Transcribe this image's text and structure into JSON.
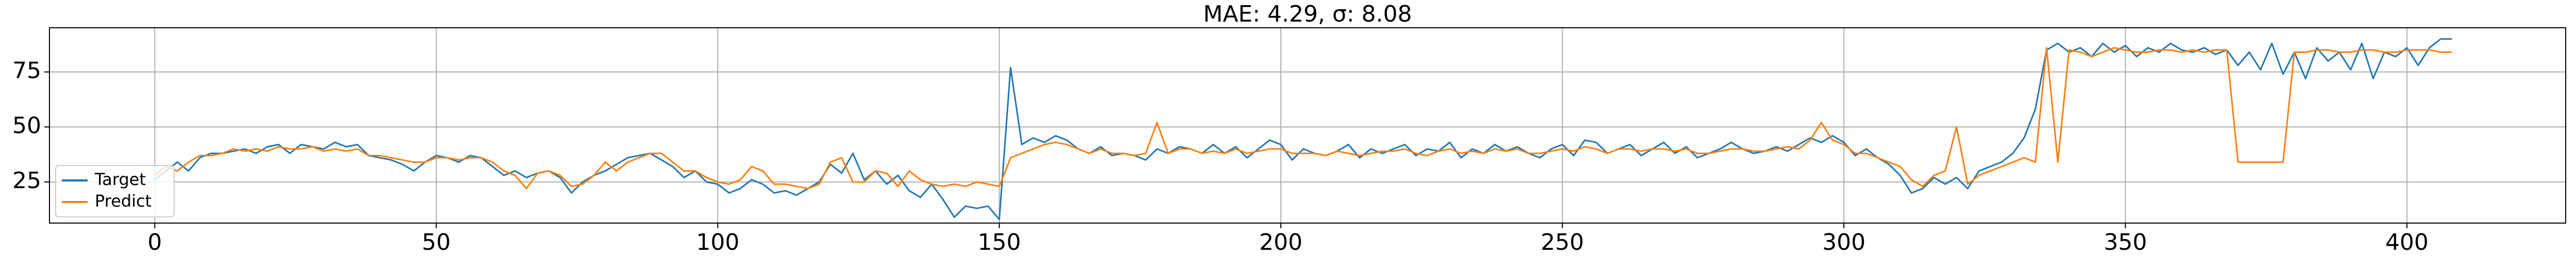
{
  "chart_data": {
    "type": "line",
    "title": "MAE: 4.29, σ: 8.08",
    "x": [
      0,
      2,
      4,
      6,
      8,
      10,
      12,
      14,
      16,
      18,
      20,
      22,
      24,
      26,
      28,
      30,
      32,
      34,
      36,
      38,
      40,
      42,
      44,
      46,
      48,
      50,
      52,
      54,
      56,
      58,
      60,
      62,
      64,
      66,
      68,
      70,
      72,
      74,
      76,
      78,
      80,
      82,
      84,
      86,
      88,
      90,
      92,
      94,
      96,
      98,
      100,
      102,
      104,
      106,
      108,
      110,
      112,
      114,
      116,
      118,
      120,
      122,
      124,
      126,
      128,
      130,
      132,
      134,
      136,
      138,
      140,
      142,
      144,
      146,
      148,
      150,
      152,
      154,
      156,
      158,
      160,
      162,
      164,
      166,
      168,
      170,
      172,
      174,
      176,
      178,
      180,
      182,
      184,
      186,
      188,
      190,
      192,
      194,
      196,
      198,
      200,
      202,
      204,
      206,
      208,
      210,
      212,
      214,
      216,
      218,
      220,
      222,
      224,
      226,
      228,
      230,
      232,
      234,
      236,
      238,
      240,
      242,
      244,
      246,
      248,
      250,
      252,
      254,
      256,
      258,
      260,
      262,
      264,
      266,
      268,
      270,
      272,
      274,
      276,
      278,
      280,
      282,
      284,
      286,
      288,
      290,
      292,
      294,
      296,
      298,
      300,
      302,
      304,
      306,
      308,
      310,
      312,
      314,
      316,
      318,
      320,
      322,
      324,
      326,
      328,
      330,
      332,
      334,
      336,
      338,
      340,
      342,
      344,
      346,
      348,
      350,
      352,
      354,
      356,
      358,
      360,
      362,
      364,
      366,
      368,
      370,
      372,
      374,
      376,
      378,
      380,
      382,
      384,
      386,
      388,
      390,
      392,
      394,
      396,
      398,
      400,
      402,
      404,
      406,
      408
    ],
    "series": [
      {
        "name": "Target",
        "color": "#1f77b4",
        "values": [
          26,
          30,
          34,
          30,
          36,
          38,
          38,
          39,
          40,
          38,
          41,
          42,
          38,
          42,
          41,
          40,
          43,
          41,
          42,
          37,
          36,
          35,
          33,
          30,
          34,
          37,
          36,
          34,
          37,
          36,
          32,
          28,
          30,
          27,
          29,
          30,
          27,
          20,
          25,
          28,
          30,
          33,
          36,
          37,
          38,
          35,
          32,
          27,
          30,
          25,
          24,
          20,
          22,
          26,
          24,
          20,
          21,
          19,
          22,
          25,
          33,
          29,
          38,
          26,
          30,
          24,
          28,
          21,
          18,
          24,
          17,
          9,
          14,
          13,
          14,
          8,
          77,
          42,
          45,
          43,
          46,
          44,
          40,
          38,
          41,
          37,
          38,
          37,
          35,
          40,
          38,
          41,
          40,
          38,
          42,
          38,
          41,
          36,
          40,
          44,
          42,
          35,
          40,
          38,
          37,
          39,
          42,
          36,
          40,
          38,
          40,
          42,
          37,
          40,
          39,
          43,
          36,
          40,
          38,
          42,
          39,
          41,
          38,
          36,
          40,
          42,
          37,
          44,
          43,
          38,
          40,
          42,
          37,
          40,
          43,
          38,
          41,
          36,
          38,
          40,
          43,
          40,
          38,
          39,
          41,
          39,
          42,
          45,
          43,
          46,
          43,
          37,
          40,
          36,
          33,
          28,
          20,
          22,
          27,
          24,
          27,
          22,
          30,
          32,
          34,
          38,
          45,
          58,
          85,
          88,
          84,
          86,
          82,
          88,
          84,
          87,
          82,
          86,
          84,
          88,
          85,
          84,
          86,
          83,
          85,
          78,
          84,
          76,
          88,
          74,
          84,
          72,
          86,
          80,
          84,
          76,
          88,
          72,
          84,
          82,
          86,
          78,
          86,
          90,
          90
        ]
      },
      {
        "name": "Predict",
        "color": "#ff7f0e",
        "values": [
          28,
          32,
          30,
          34,
          37,
          37,
          38,
          40,
          39,
          40,
          39,
          41,
          40,
          40,
          41,
          39,
          40,
          39,
          40,
          37,
          37,
          36,
          35,
          34,
          34,
          36,
          36,
          35,
          36,
          36,
          34,
          30,
          28,
          22,
          29,
          30,
          28,
          23,
          24,
          28,
          34,
          30,
          34,
          36,
          38,
          38,
          34,
          30,
          30,
          27,
          25,
          24,
          26,
          32,
          30,
          24,
          24,
          23,
          22,
          24,
          34,
          36,
          25,
          25,
          30,
          29,
          23,
          30,
          26,
          24,
          23,
          24,
          23,
          25,
          24,
          23,
          36,
          38,
          40,
          42,
          43,
          42,
          40,
          38,
          40,
          38,
          38,
          37,
          38,
          52,
          38,
          40,
          40,
          38,
          39,
          38,
          40,
          38,
          39,
          40,
          40,
          38,
          38,
          38,
          37,
          39,
          38,
          37,
          38,
          39,
          39,
          40,
          38,
          37,
          39,
          40,
          38,
          39,
          38,
          40,
          39,
          40,
          38,
          38,
          39,
          40,
          39,
          41,
          40,
          38,
          40,
          40,
          39,
          40,
          40,
          39,
          40,
          38,
          38,
          39,
          40,
          40,
          39,
          39,
          40,
          41,
          40,
          44,
          52,
          44,
          42,
          38,
          38,
          36,
          34,
          32,
          26,
          23,
          28,
          30,
          50,
          24,
          28,
          30,
          32,
          34,
          36,
          34,
          86,
          34,
          85,
          84,
          82,
          84,
          86,
          85,
          84,
          84,
          85,
          85,
          84,
          85,
          84,
          85,
          85,
          34,
          34,
          34,
          34,
          34,
          84,
          84,
          85,
          85,
          84,
          84,
          85,
          85,
          84,
          84,
          85,
          85,
          85,
          84,
          84
        ]
      }
    ],
    "xlim": [
      -18.7,
      428.2
    ],
    "ylim": [
      6.3,
      95.1
    ],
    "xticks": [
      0,
      50,
      100,
      150,
      200,
      250,
      300,
      350,
      400
    ],
    "yticks": [
      25,
      50,
      75
    ],
    "grid": true,
    "legend": "lower left"
  }
}
